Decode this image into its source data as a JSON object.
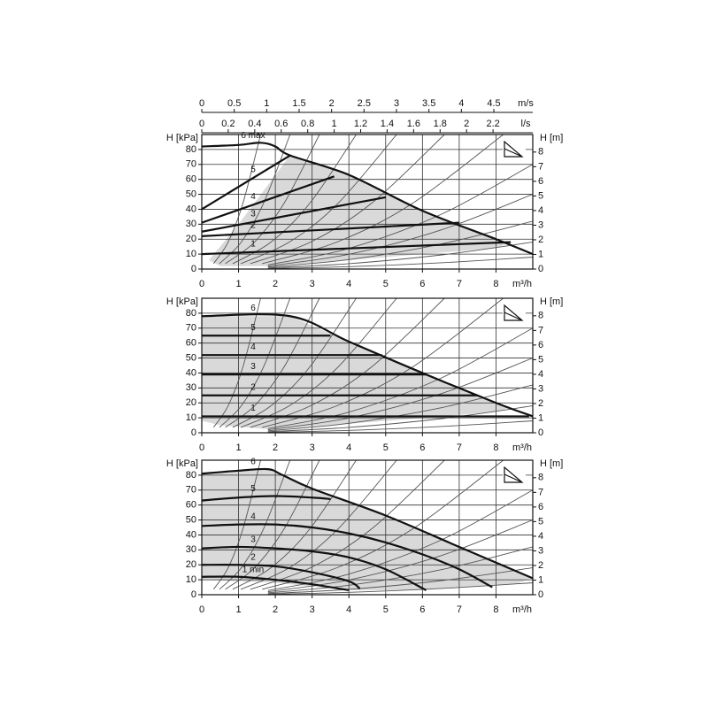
{
  "chart_data": [
    {
      "type": "line",
      "y_label": "H [kPa]",
      "y2_label": "H [m]",
      "x_label": "m³/h",
      "xlim": [
        0,
        9
      ],
      "xticks": [
        0,
        1,
        2,
        3,
        4,
        5,
        6,
        7,
        8
      ],
      "ylim": [
        0,
        90
      ],
      "yticks": [
        0,
        10,
        20,
        30,
        40,
        50,
        60,
        70,
        80
      ],
      "y2lim": [
        0,
        9.2
      ],
      "y2ticks": [
        0,
        1,
        2,
        3,
        4,
        5,
        6,
        7,
        8
      ],
      "x2_label": "m/s",
      "x2lim": [
        0,
        5.1
      ],
      "x2ticks": [
        0,
        0.5,
        1,
        1.5,
        2,
        2.5,
        3,
        3.5,
        4,
        4.5
      ],
      "x3_label": "l/s",
      "x3lim": [
        0,
        2.5
      ],
      "x3ticks": [
        0,
        0.2,
        0.4,
        0.6,
        0.8,
        1,
        1.2,
        1.4,
        1.6,
        1.8,
        2,
        2.2
      ],
      "grid": true,
      "area": {
        "color": "#d9d9d9",
        "x": [
          0.2,
          1,
          2.4,
          4,
          6,
          8,
          8.4,
          8,
          6,
          4,
          2,
          0.5
        ],
        "values": [
          6,
          30,
          76,
          63,
          39,
          20,
          18,
          14,
          10,
          6,
          2,
          2
        ]
      },
      "series": [
        {
          "name": "6 max",
          "color": "#111111",
          "x": [
            0,
            1,
            1.6,
            2,
            2.4,
            4,
            6,
            8,
            9
          ],
          "values": [
            82,
            83,
            84.5,
            82,
            76,
            63,
            39,
            20,
            10
          ]
        },
        {
          "name": "5",
          "color": "#111111",
          "x": [
            0,
            2.4
          ],
          "values": [
            40,
            76
          ]
        },
        {
          "name": "4",
          "color": "#111111",
          "x": [
            0,
            3.6
          ],
          "values": [
            31,
            62
          ]
        },
        {
          "name": "3",
          "color": "#111111",
          "x": [
            0,
            5
          ],
          "values": [
            25,
            48
          ]
        },
        {
          "name": "2",
          "color": "#111111",
          "x": [
            0,
            7
          ],
          "values": [
            22,
            31
          ]
        },
        {
          "name": "1",
          "color": "#111111",
          "x": [
            0,
            8.4
          ],
          "values": [
            10,
            18
          ]
        }
      ]
    },
    {
      "type": "line",
      "y_label": "H [kPa]",
      "y2_label": "H [m]",
      "x_label": "m³/h",
      "xlim": [
        0,
        9
      ],
      "xticks": [
        0,
        1,
        2,
        3,
        4,
        5,
        6,
        7,
        8
      ],
      "ylim": [
        0,
        90
      ],
      "yticks": [
        0,
        10,
        20,
        30,
        40,
        50,
        60,
        70,
        80
      ],
      "y2lim": [
        0,
        9.2
      ],
      "y2ticks": [
        0,
        1,
        2,
        3,
        4,
        5,
        6,
        7,
        8
      ],
      "grid": true,
      "area": {
        "color": "#d9d9d9",
        "x": [
          0,
          2.4,
          4,
          6,
          8,
          8.4,
          8,
          6,
          4,
          2,
          0.5,
          0
        ],
        "values": [
          78,
          78,
          61,
          40,
          20,
          17,
          14,
          10,
          6,
          2,
          5,
          8
        ]
      },
      "series": [
        {
          "name": "6",
          "color": "#111111",
          "x": [
            0,
            2.4,
            4,
            6,
            8,
            9
          ],
          "values": [
            78,
            78,
            61,
            40,
            20,
            11
          ]
        },
        {
          "name": "5",
          "color": "#111111",
          "x": [
            0,
            3.5
          ],
          "values": [
            65,
            65
          ]
        },
        {
          "name": "4",
          "color": "#111111",
          "x": [
            0,
            4.9
          ],
          "values": [
            52,
            52
          ]
        },
        {
          "name": "3",
          "color": "#111111",
          "x": [
            0,
            6.1
          ],
          "values": [
            39,
            39
          ]
        },
        {
          "name": "2",
          "color": "#111111",
          "x": [
            0,
            7.5
          ],
          "values": [
            25,
            25
          ]
        },
        {
          "name": "1",
          "color": "#111111",
          "x": [
            0,
            8.9
          ],
          "values": [
            11,
            11
          ]
        }
      ]
    },
    {
      "type": "line",
      "y_label": "H [kPa]",
      "y2_label": "H [m]",
      "x_label": "m³/h",
      "xlim": [
        0,
        9
      ],
      "xticks": [
        0,
        1,
        2,
        3,
        4,
        5,
        6,
        7,
        8
      ],
      "ylim": [
        0,
        90
      ],
      "yticks": [
        0,
        10,
        20,
        30,
        40,
        50,
        60,
        70,
        80
      ],
      "y2lim": [
        0,
        9.2
      ],
      "y2ticks": [
        0,
        1,
        2,
        3,
        4,
        5,
        6,
        7,
        8
      ],
      "grid": true,
      "area": {
        "color": "#d9d9d9",
        "x": [
          0,
          1.8,
          2.2,
          3,
          5,
          7,
          9,
          8.5,
          7,
          6,
          4,
          2,
          0
        ],
        "values": [
          81,
          84,
          80,
          71,
          53,
          32,
          11,
          7,
          5,
          3,
          3,
          8,
          10
        ]
      },
      "series": [
        {
          "name": "6",
          "color": "#111111",
          "x": [
            0,
            1,
            1.8,
            2.2,
            3,
            5,
            7,
            9
          ],
          "values": [
            81,
            83,
            84,
            80,
            71,
            53,
            32,
            11
          ]
        },
        {
          "name": "5",
          "color": "#111111",
          "x": [
            0,
            1,
            2,
            3,
            3.5
          ],
          "values": [
            63,
            65,
            66,
            65,
            64
          ]
        },
        {
          "name": "4",
          "color": "#111111",
          "x": [
            0,
            1,
            2,
            3,
            4,
            5,
            6,
            7,
            7.9
          ],
          "values": [
            46,
            47,
            47,
            45,
            41,
            35,
            27,
            17,
            5
          ]
        },
        {
          "name": "3",
          "color": "#111111",
          "x": [
            0,
            1,
            2,
            3,
            4,
            5,
            6.1
          ],
          "values": [
            31,
            32,
            31,
            29,
            25,
            17,
            3
          ]
        },
        {
          "name": "2",
          "color": "#111111",
          "x": [
            0,
            1,
            2,
            3,
            4,
            4.3
          ],
          "values": [
            20,
            20,
            19,
            15,
            9,
            4
          ]
        },
        {
          "name": "1 min",
          "color": "#111111",
          "x": [
            0,
            1,
            2,
            3,
            4
          ],
          "values": [
            12,
            12,
            10,
            7,
            3
          ]
        }
      ]
    }
  ],
  "system_curves": [
    {
      "x": [
        0.32,
        0.72,
        1.12,
        1.6
      ],
      "values": [
        3.6,
        18.2,
        44.1,
        90
      ]
    },
    {
      "x": [
        0.48,
        1.08,
        1.68,
        2.4
      ],
      "values": [
        3.6,
        18.2,
        44.1,
        90
      ]
    },
    {
      "x": [
        0.64,
        1.44,
        2.24,
        3.2
      ],
      "values": [
        3.6,
        18.2,
        44.1,
        90
      ]
    },
    {
      "x": [
        0.84,
        1.89,
        2.94,
        4.2
      ],
      "values": [
        3.6,
        18.2,
        44.1,
        90
      ]
    },
    {
      "x": [
        1.06,
        2.39,
        3.71,
        5.3
      ],
      "values": [
        3.6,
        18.2,
        44.1,
        90
      ]
    },
    {
      "x": [
        1.32,
        2.97,
        4.62,
        6.6
      ],
      "values": [
        3.6,
        18.2,
        44.1,
        90
      ]
    },
    {
      "x": [
        1.64,
        3.69,
        5.74,
        8.2
      ],
      "values": [
        3.6,
        18.2,
        44.1,
        90
      ]
    },
    {
      "x": [
        1.8,
        4,
        6.5,
        9
      ],
      "values": [
        2.8,
        13.8,
        36.5,
        70
      ]
    },
    {
      "x": [
        1.8,
        4,
        6.5,
        9
      ],
      "values": [
        2,
        9.9,
        26.1,
        50
      ]
    },
    {
      "x": [
        1.8,
        4,
        6.5,
        9
      ],
      "values": [
        1.3,
        6.3,
        16.7,
        32
      ]
    },
    {
      "x": [
        1.8,
        4,
        6.5,
        9
      ],
      "values": [
        0.7,
        3.6,
        9.4,
        18
      ]
    },
    {
      "x": [
        1.8,
        4,
        6.5,
        9
      ],
      "values": [
        0.3,
        1.6,
        4.2,
        8
      ]
    }
  ]
}
